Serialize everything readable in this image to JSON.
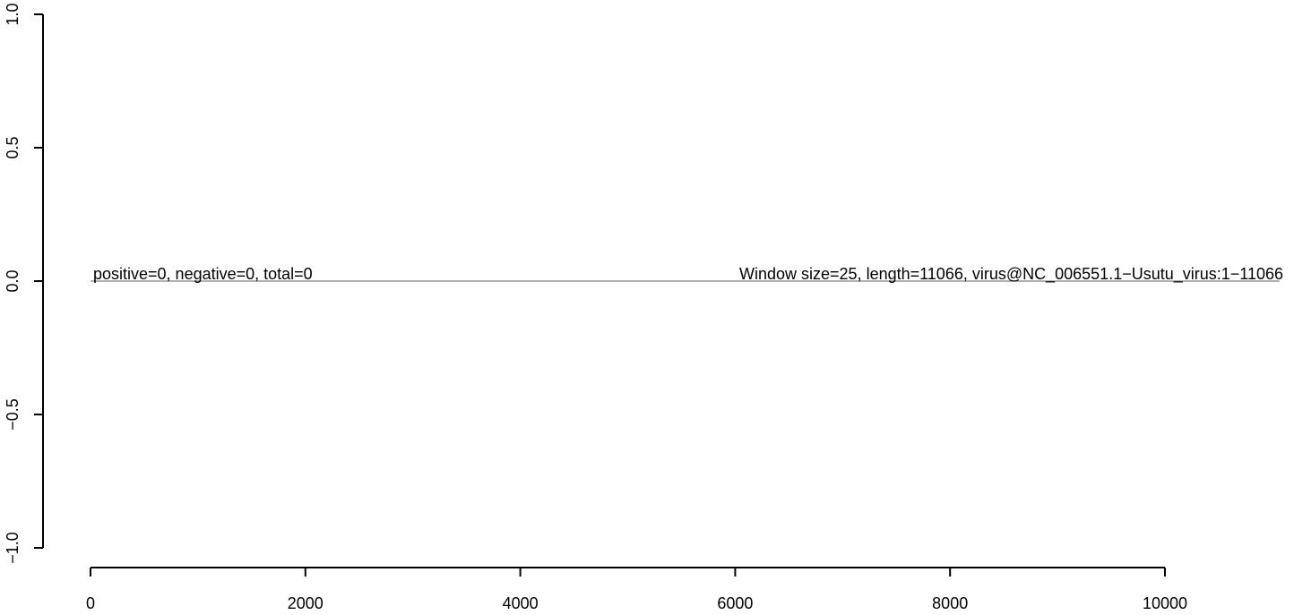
{
  "chart_data": {
    "type": "line",
    "title": "",
    "xlabel": "",
    "ylabel": "",
    "xlim": [
      0,
      11066
    ],
    "ylim": [
      -1.0,
      1.0
    ],
    "x_ticks": [
      0,
      2000,
      4000,
      6000,
      8000,
      10000
    ],
    "x_tick_labels": [
      "0",
      "2000",
      "4000",
      "6000",
      "8000",
      "10000"
    ],
    "y_ticks": [
      -1.0,
      -0.5,
      0.0,
      0.5,
      1.0
    ],
    "y_tick_labels": [
      "−1.0",
      "−0.5",
      "0.0",
      "0.5",
      "1.0"
    ],
    "grid": false,
    "series": [
      {
        "x": [
          1,
          11066
        ],
        "y": [
          0,
          0
        ],
        "color": "#808080"
      }
    ],
    "annotations": {
      "left": "positive=0, negative=0, total=0",
      "right": "Window size=25, length=11066, virus@NC_006551.1−Usutu_virus:1−11066"
    }
  }
}
